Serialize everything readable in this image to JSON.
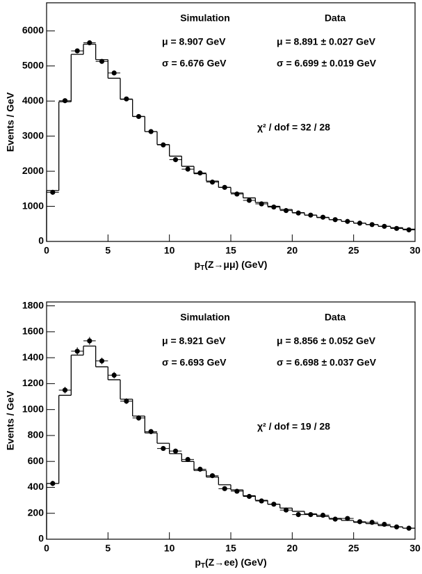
{
  "chart_data": [
    {
      "type": "histogram",
      "bins": [
        0,
        1,
        2,
        3,
        4,
        5,
        6,
        7,
        8,
        9,
        10,
        11,
        12,
        13,
        14,
        15,
        16,
        17,
        18,
        19,
        20,
        21,
        22,
        23,
        24,
        25,
        26,
        27,
        28,
        29,
        30
      ],
      "series": [
        {
          "name": "Simulation",
          "color": "#000000",
          "style": "step",
          "values": [
            1450,
            3980,
            5330,
            5620,
            5180,
            4650,
            4050,
            3560,
            3130,
            2760,
            2430,
            2140,
            1930,
            1720,
            1540,
            1380,
            1240,
            1110,
            1000,
            910,
            820,
            750,
            680,
            620,
            570,
            520,
            480,
            430,
            390,
            350
          ]
        },
        {
          "name": "Data",
          "color": "#000000",
          "style": "points",
          "values": [
            1400,
            4010,
            5430,
            5660,
            5130,
            4800,
            4060,
            3560,
            3130,
            2750,
            2330,
            2060,
            1950,
            1690,
            1540,
            1350,
            1170,
            1070,
            980,
            880,
            810,
            750,
            690,
            620,
            570,
            520,
            480,
            430,
            370,
            330
          ]
        }
      ],
      "x_label": {
        "main": "p",
        "sub": "T",
        "rest": "(Z→μμ) (GeV)"
      },
      "y_label": "Events / GeV",
      "xlim": [
        0,
        30
      ],
      "xticks": [
        0,
        5,
        10,
        15,
        20,
        25,
        30
      ],
      "ylim": [
        0,
        6800
      ],
      "yticks": [
        0,
        1000,
        2000,
        3000,
        4000,
        5000,
        6000
      ],
      "annotations": {
        "mc_mean": "μ = 8.907 GeV",
        "mc_sigma": "σ = 6.676 GeV",
        "data_mean": "μ = 8.891 ± 0.027 GeV",
        "data_sigma": "σ = 6.699 ± 0.019 GeV",
        "chi2": "χ² / dof = 32 / 28"
      }
    },
    {
      "type": "histogram",
      "bins": [
        0,
        1,
        2,
        3,
        4,
        5,
        6,
        7,
        8,
        9,
        10,
        11,
        12,
        13,
        14,
        15,
        16,
        17,
        18,
        19,
        20,
        21,
        22,
        23,
        24,
        25,
        26,
        27,
        28,
        29,
        30
      ],
      "series": [
        {
          "name": "Simulation",
          "color": "#000000",
          "style": "step",
          "values": [
            430,
            1110,
            1420,
            1490,
            1330,
            1230,
            1080,
            950,
            820,
            740,
            660,
            600,
            530,
            480,
            420,
            380,
            335,
            300,
            270,
            240,
            215,
            195,
            175,
            160,
            145,
            130,
            120,
            105,
            95,
            85
          ]
        },
        {
          "name": "Data",
          "color": "#000000",
          "style": "points",
          "values": [
            430,
            1150,
            1450,
            1530,
            1375,
            1265,
            1065,
            935,
            830,
            700,
            680,
            615,
            540,
            490,
            390,
            370,
            330,
            295,
            270,
            225,
            190,
            190,
            185,
            155,
            160,
            135,
            130,
            115,
            95,
            85
          ],
          "errors": [
            20,
            25,
            30,
            30,
            25,
            25,
            22,
            20,
            20,
            18,
            18,
            17,
            15,
            15,
            14,
            13,
            13,
            12,
            12,
            11,
            10,
            10,
            10,
            9,
            9,
            9,
            8,
            8,
            8,
            7
          ]
        }
      ],
      "x_label": {
        "main": "p",
        "sub": "T",
        "rest": "(Z→ee) (GeV)"
      },
      "y_label": "Events / GeV",
      "xlim": [
        0,
        30
      ],
      "xticks": [
        0,
        5,
        10,
        15,
        20,
        25,
        30
      ],
      "ylim": [
        0,
        1830
      ],
      "yticks": [
        0,
        200,
        400,
        600,
        800,
        1000,
        1200,
        1400,
        1600,
        1800
      ],
      "annotations": {
        "mc_mean": "μ = 8.921 GeV",
        "mc_sigma": "σ = 6.693 GeV",
        "data_mean": "μ = 8.856 ± 0.052 GeV",
        "data_sigma": "σ = 6.698 ± 0.037 GeV",
        "chi2": "χ² / dof = 19 / 28"
      }
    }
  ]
}
